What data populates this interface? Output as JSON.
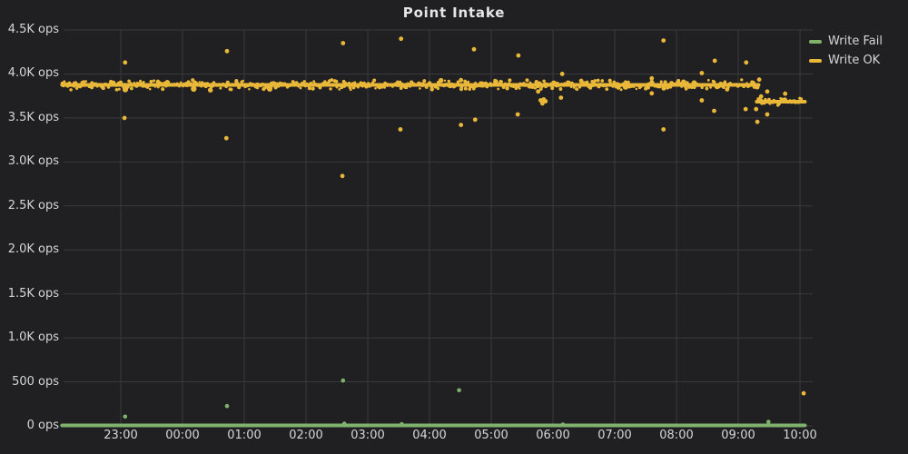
{
  "theme": {
    "background": "#202022",
    "grid_color": "#3a3a3e",
    "text_color": "#d5d6d8",
    "title_color": "#e6e6e8"
  },
  "legend": [
    {
      "label": "Write Fail",
      "color": "#7EB26D"
    },
    {
      "label": "Write OK",
      "color": "#EAB839"
    }
  ],
  "chart_data": {
    "type": "scatter",
    "title": "Point Intake",
    "x_axis": {
      "note": "time of day, hours measured as offset from 23:00",
      "tick_labels": [
        "23:00",
        "00:00",
        "01:00",
        "02:00",
        "03:00",
        "04:00",
        "05:00",
        "06:00",
        "07:00",
        "08:00",
        "09:00",
        "10:00"
      ],
      "tick_hours": [
        0,
        1,
        2,
        3,
        4,
        5,
        6,
        7,
        8,
        9,
        10,
        11
      ],
      "range_hours": [
        -1.0,
        11.2
      ],
      "grid": true
    },
    "y_axis": {
      "unit": "ops",
      "tick_labels": [
        "0 ops",
        "500 ops",
        "1.0K ops",
        "1.5K ops",
        "2.0K ops",
        "2.5K ops",
        "3.0K ops",
        "3.5K ops",
        "4.0K ops",
        "4.5K ops"
      ],
      "tick_values": [
        0,
        500,
        1000,
        1500,
        2000,
        2500,
        3000,
        3500,
        4000,
        4500
      ],
      "range": [
        0,
        4500
      ],
      "grid": true
    },
    "legend_position": "top-right",
    "series": [
      {
        "name": "Write Fail",
        "color": "#7EB26D",
        "style": "thick-line-with-point-outliers",
        "baseline": {
          "x_start": -0.95,
          "x_end": 11.08,
          "value": 5
        },
        "points": [
          [
            0.07,
            105
          ],
          [
            1.72,
            225
          ],
          [
            3.6,
            515
          ],
          [
            3.62,
            25
          ],
          [
            4.55,
            20
          ],
          [
            5.48,
            405
          ],
          [
            7.16,
            15
          ],
          [
            10.49,
            45
          ]
        ]
      },
      {
        "name": "Write OK",
        "color": "#EAB839",
        "style": "dense-scatter-band-with-outliers",
        "band_segments": [
          {
            "x_start": -0.95,
            "x_end": 10.33,
            "value_mean": 3875,
            "jitter_ops": 60
          },
          {
            "x_start": 10.3,
            "x_end": 11.08,
            "value_mean": 3685,
            "jitter_ops": 50
          }
        ],
        "points": [
          [
            0.07,
            4130
          ],
          [
            0.06,
            3500
          ],
          [
            1.72,
            4260
          ],
          [
            1.71,
            3270
          ],
          [
            3.6,
            4350
          ],
          [
            3.59,
            2840
          ],
          [
            4.54,
            4400
          ],
          [
            4.53,
            3370
          ],
          [
            5.51,
            3930
          ],
          [
            5.51,
            3420
          ],
          [
            5.72,
            4280
          ],
          [
            5.74,
            3480
          ],
          [
            6.44,
            4210
          ],
          [
            6.43,
            3540
          ],
          [
            6.76,
            3800
          ],
          [
            6.8,
            3700
          ],
          [
            6.83,
            3665
          ],
          [
            6.85,
            3710
          ],
          [
            6.88,
            3690
          ],
          [
            7.13,
            3730
          ],
          [
            7.15,
            4000
          ],
          [
            8.6,
            3950
          ],
          [
            8.6,
            3780
          ],
          [
            8.79,
            4380
          ],
          [
            8.79,
            3370
          ],
          [
            9.41,
            4010
          ],
          [
            9.41,
            3700
          ],
          [
            9.62,
            4150
          ],
          [
            9.61,
            3580
          ],
          [
            10.13,
            4130
          ],
          [
            10.12,
            3600
          ],
          [
            10.29,
            3600
          ],
          [
            10.31,
            3850
          ],
          [
            10.31,
            3455
          ],
          [
            10.34,
            3935
          ],
          [
            10.37,
            3745
          ],
          [
            10.47,
            3800
          ],
          [
            10.47,
            3540
          ],
          [
            10.76,
            3775
          ],
          [
            11.06,
            370
          ]
        ]
      }
    ]
  }
}
